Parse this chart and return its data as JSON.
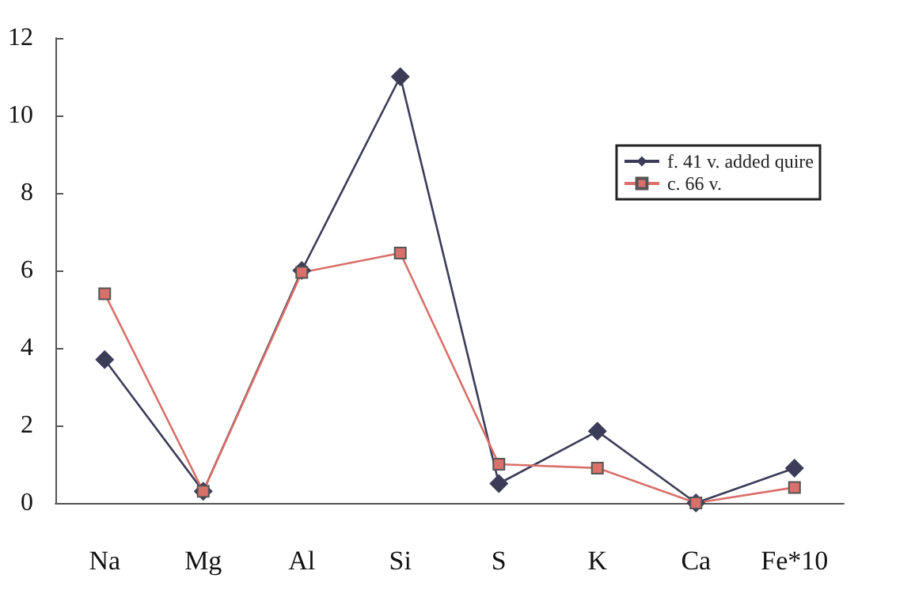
{
  "chart_data": {
    "type": "line",
    "categories": [
      "Na",
      "Mg",
      "Al",
      "Si",
      "S",
      "K",
      "Ca",
      "Fe*10"
    ],
    "series": [
      {
        "name": "f. 41 v. added quire",
        "color": "#3c3c58",
        "marker": "diamond",
        "values": [
          3.7,
          0.3,
          6.0,
          11.0,
          0.5,
          1.85,
          0,
          0.9
        ]
      },
      {
        "name": "c. 66 v.",
        "color": "#d9706a",
        "marker": "square",
        "values": [
          5.4,
          0.3,
          5.95,
          6.45,
          1.0,
          0.9,
          0,
          0.4
        ]
      }
    ],
    "ylim": [
      0,
      12
    ],
    "yticks": [
      0,
      2,
      4,
      6,
      8,
      10,
      12
    ],
    "grid": false,
    "legend": "top right"
  }
}
